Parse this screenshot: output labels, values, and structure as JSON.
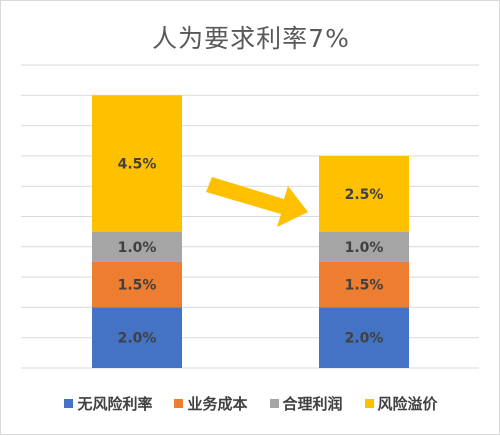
{
  "chart_data": {
    "type": "bar",
    "stacked": true,
    "title": "人为要求利率7%",
    "categories": [
      "",
      ""
    ],
    "series": [
      {
        "name": "无风险利率",
        "color": "#4472C4",
        "values": [
          2.0,
          2.0
        ],
        "labels": [
          "2.0%",
          "2.0%"
        ]
      },
      {
        "name": "业务成本",
        "color": "#ED7D31",
        "values": [
          1.5,
          1.5
        ],
        "labels": [
          "1.5%",
          "1.5%"
        ]
      },
      {
        "name": "合理利润",
        "color": "#A5A5A5",
        "values": [
          1.0,
          1.0
        ],
        "labels": [
          "1.0%",
          "1.0%"
        ]
      },
      {
        "name": "风险溢价",
        "color": "#FFC000",
        "values": [
          4.5,
          2.5
        ],
        "labels": [
          "4.5%",
          "2.5%"
        ]
      }
    ],
    "ylim": [
      0,
      10
    ],
    "grid": true,
    "legend": "bottom",
    "annotation": {
      "type": "arrow",
      "from": "bar-1",
      "to": "bar-2",
      "color": "#FFC000"
    }
  }
}
